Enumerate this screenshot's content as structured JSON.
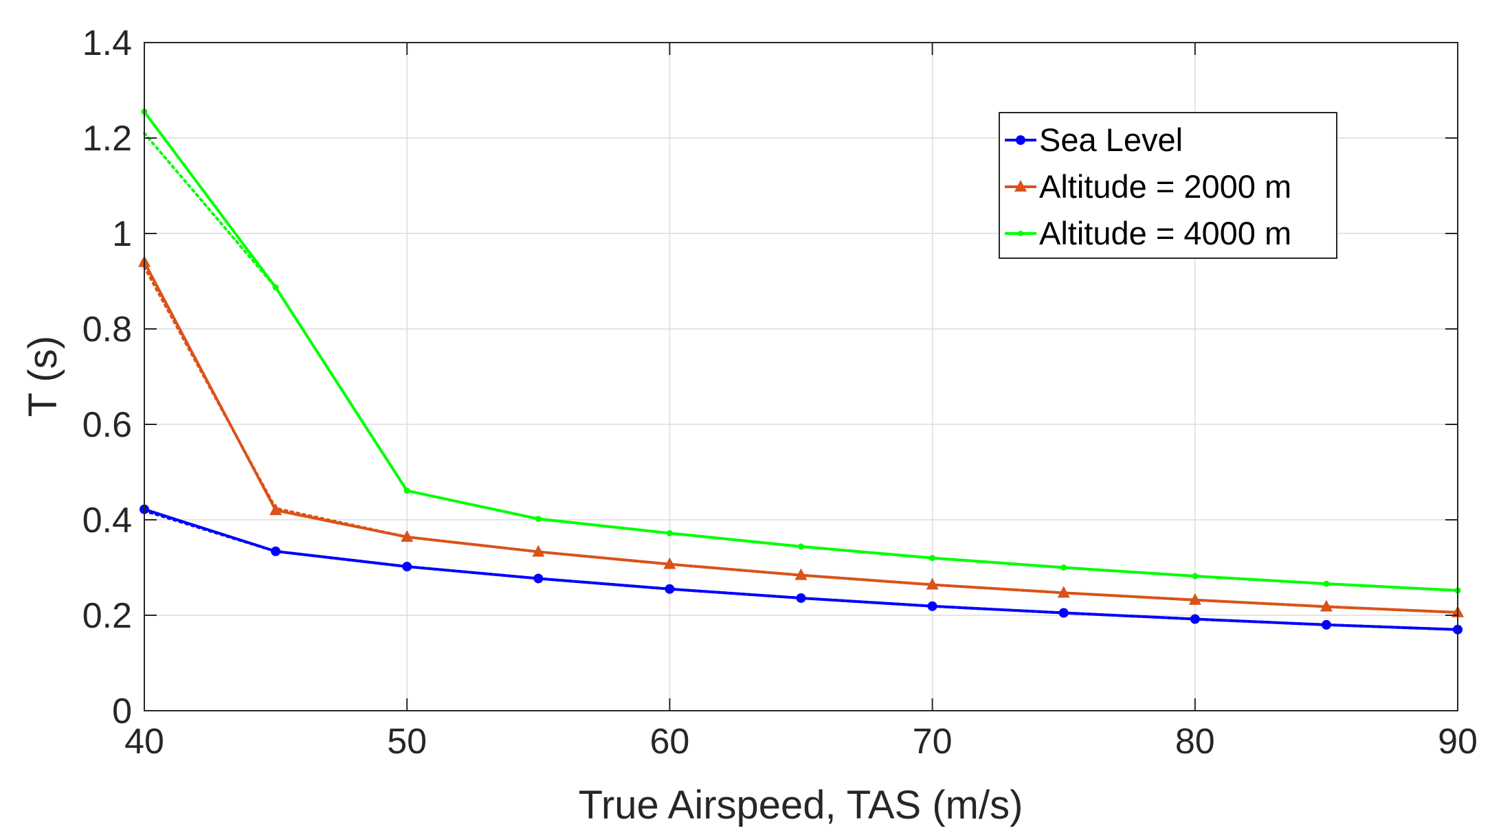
{
  "chart_data": {
    "type": "line",
    "title": "",
    "xlabel": "True Airspeed, TAS (m/s)",
    "ylabel": "T (s)",
    "xlim": [
      40,
      90
    ],
    "ylim": [
      0,
      1.4
    ],
    "xticks": [
      40,
      50,
      60,
      70,
      80,
      90
    ],
    "yticks": [
      0,
      0.2,
      0.4,
      0.6,
      0.8,
      1,
      1.2,
      1.4
    ],
    "xtick_labels": [
      "40",
      "50",
      "60",
      "70",
      "80",
      "90"
    ],
    "ytick_labels": [
      "0",
      "0.2",
      "0.4",
      "0.6",
      "0.8",
      "1",
      "1.2",
      "1.4"
    ],
    "grid": true,
    "legend_position": "top-right",
    "x": [
      40,
      45,
      50,
      55,
      60,
      65,
      70,
      75,
      80,
      85,
      90
    ],
    "series": [
      {
        "name": "Sea Level",
        "color": "#0000ff",
        "marker": "circle",
        "values": [
          0.422,
          0.334,
          0.302,
          0.277,
          0.255,
          0.236,
          0.219,
          0.205,
          0.192,
          0.18,
          0.17
        ],
        "dotted_values": [
          0.419,
          0.334,
          0.302,
          0.277,
          0.255,
          0.236,
          0.219,
          0.205,
          0.192,
          0.18,
          0.17
        ]
      },
      {
        "name": "Altitude = 2000 m",
        "color": "#d95319",
        "marker": "triangle",
        "values": [
          0.94,
          0.42,
          0.364,
          0.333,
          0.307,
          0.284,
          0.264,
          0.247,
          0.232,
          0.218,
          0.206
        ],
        "dotted_values": [
          0.93,
          0.424,
          0.364,
          0.333,
          0.307,
          0.284,
          0.264,
          0.247,
          0.232,
          0.218,
          0.206
        ]
      },
      {
        "name": "Altitude = 4000 m",
        "color": "#00ff00",
        "marker": "dot",
        "values": [
          1.255,
          0.887,
          0.461,
          0.402,
          0.372,
          0.344,
          0.32,
          0.3,
          0.282,
          0.266,
          0.252
        ],
        "dotted_values": [
          1.21,
          0.887,
          0.461,
          0.402,
          0.372,
          0.344,
          0.32,
          0.3,
          0.282,
          0.266,
          0.252
        ]
      }
    ]
  }
}
